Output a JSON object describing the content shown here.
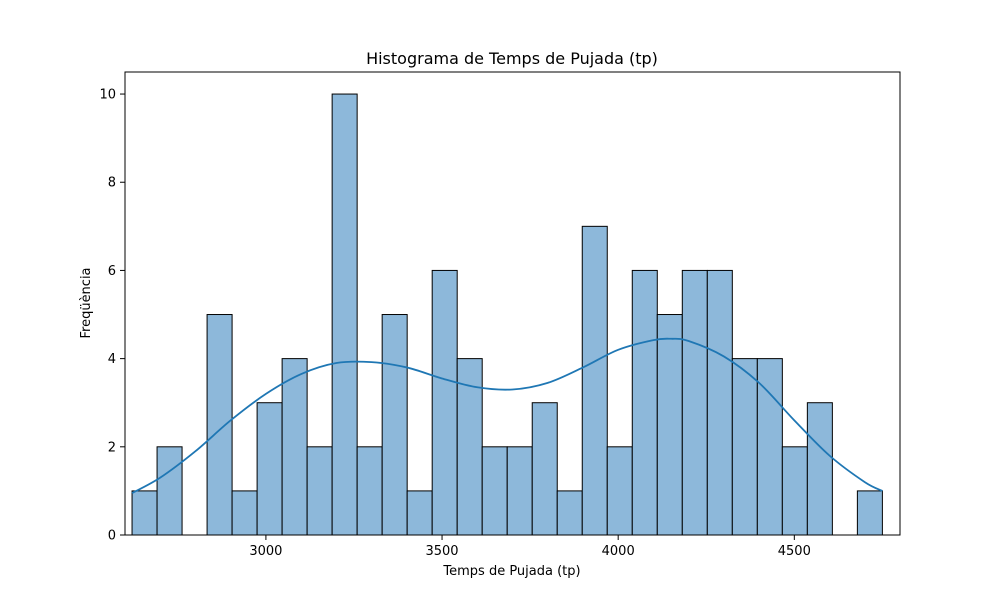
{
  "chart_data": {
    "type": "bar",
    "title": "Histograma de Temps de Pujada (tp)",
    "xlabel": "Temps de Pujada (tp)",
    "ylabel": "Freqüència",
    "xlim": [
      2600,
      4800
    ],
    "ylim": [
      0,
      10.5
    ],
    "xticks": [
      3000,
      3500,
      4000,
      4500
    ],
    "yticks": [
      0,
      2,
      4,
      6,
      8,
      10
    ],
    "bin_start": 2620,
    "bin_width": 71,
    "values": [
      1,
      2,
      0,
      5,
      1,
      3,
      4,
      2,
      10,
      2,
      5,
      1,
      6,
      4,
      2,
      2,
      3,
      1,
      7,
      2,
      6,
      5,
      6,
      6,
      4,
      4,
      2,
      3,
      0,
      1
    ],
    "bar_color": "#8db8da",
    "bar_edge_color": "#000000",
    "kde_color": "#1f77b4",
    "kde": {
      "x": [
        2620,
        2700,
        2800,
        2900,
        3000,
        3100,
        3200,
        3300,
        3400,
        3500,
        3600,
        3700,
        3800,
        3900,
        4000,
        4100,
        4150,
        4200,
        4300,
        4400,
        4500,
        4600,
        4700,
        4750
      ],
      "y": [
        0.95,
        1.3,
        1.9,
        2.6,
        3.2,
        3.65,
        3.9,
        3.92,
        3.8,
        3.55,
        3.35,
        3.3,
        3.45,
        3.8,
        4.2,
        4.42,
        4.45,
        4.4,
        4.05,
        3.45,
        2.6,
        1.8,
        1.2,
        1.0
      ]
    },
    "grid": false,
    "legend": "none"
  }
}
